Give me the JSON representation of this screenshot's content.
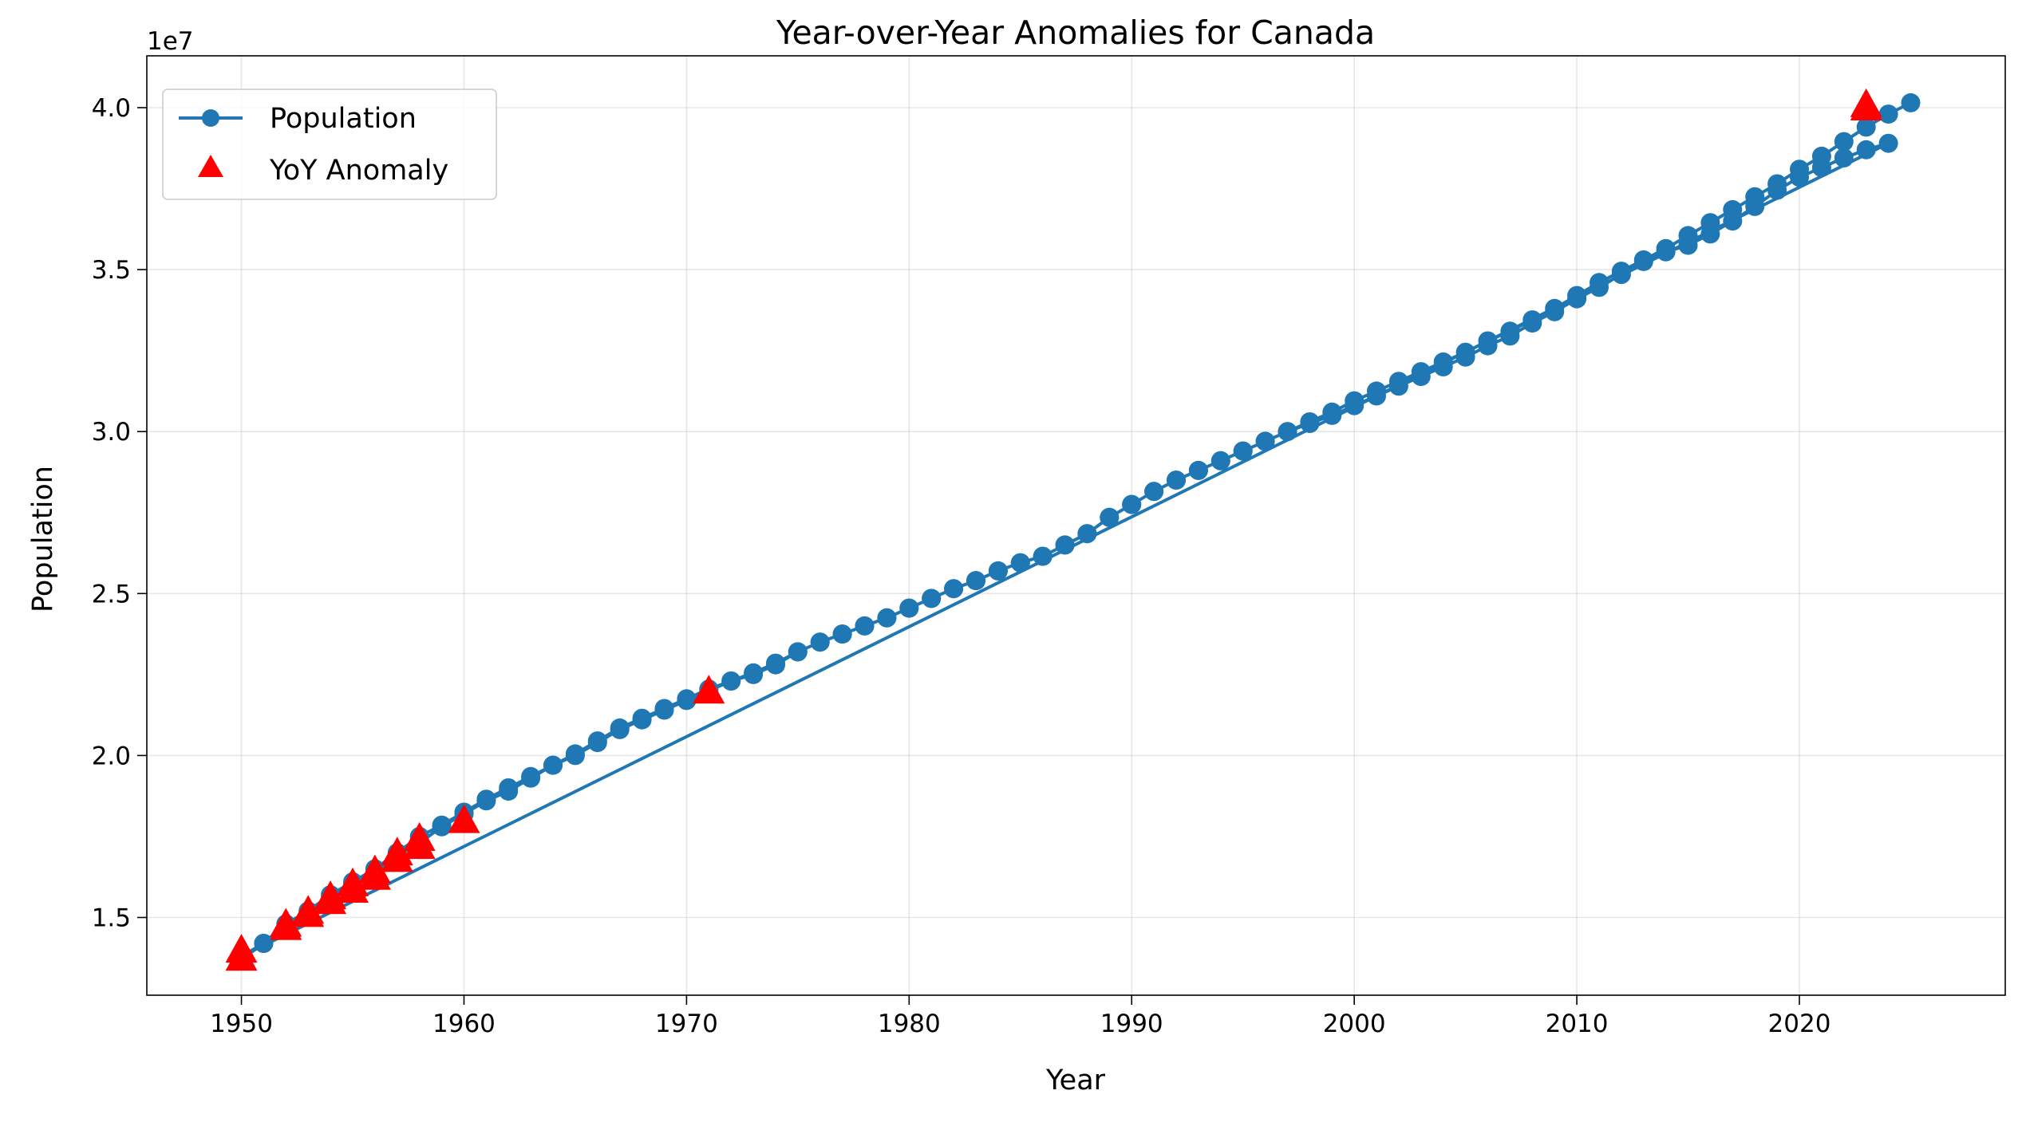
{
  "chart_data": {
    "type": "line",
    "title": "Year-over-Year Anomalies for Canada",
    "xlabel": "Year",
    "ylabel": "Population",
    "y_offset_label": "1e7",
    "y_scale_factor": 10000000,
    "xlim": [
      1945.75,
      2029.25
    ],
    "ylim": [
      12600000,
      41600000
    ],
    "xticks": [
      1950,
      1960,
      1970,
      1980,
      1990,
      2000,
      2010,
      2020
    ],
    "xtick_labels": [
      "1950",
      "1960",
      "1970",
      "1980",
      "1990",
      "2000",
      "2010",
      "2020"
    ],
    "yticks": [
      15000000,
      20000000,
      25000000,
      30000000,
      35000000,
      40000000
    ],
    "ytick_labels": [
      "1.5",
      "2.0",
      "2.5",
      "3.0",
      "3.5",
      "4.0"
    ],
    "grid": true,
    "legend_position": "top-left",
    "legend": [
      "Population",
      "YoY Anomaly"
    ],
    "series": [
      {
        "name": "Population",
        "color": "#1f77b4",
        "marker": "circle",
        "points": [
          [
            1950,
            13700000
          ],
          [
            1951,
            14200000
          ],
          [
            1952,
            14700000
          ],
          [
            1953,
            15100000
          ],
          [
            1954,
            15600000
          ],
          [
            1955,
            16000000
          ],
          [
            1956,
            16400000
          ],
          [
            1957,
            16900000
          ],
          [
            1958,
            17300000
          ],
          [
            1959,
            17800000
          ],
          [
            1960,
            18200000
          ],
          [
            1961,
            18600000
          ],
          [
            1962,
            18900000
          ],
          [
            1963,
            19300000
          ],
          [
            1964,
            19700000
          ],
          [
            1965,
            20000000
          ],
          [
            1966,
            20400000
          ],
          [
            1967,
            20800000
          ],
          [
            1968,
            21100000
          ],
          [
            1969,
            21400000
          ],
          [
            1970,
            21700000
          ],
          [
            1971,
            22000000
          ],
          [
            1972,
            22300000
          ],
          [
            1973,
            22500000
          ],
          [
            1974,
            22800000
          ],
          [
            1975,
            23200000
          ],
          [
            1976,
            23500000
          ],
          [
            1977,
            23750000
          ],
          [
            1978,
            24000000
          ],
          [
            1979,
            24250000
          ],
          [
            1980,
            24550000
          ],
          [
            1981,
            24850000
          ],
          [
            1982,
            25150000
          ],
          [
            1983,
            25400000
          ],
          [
            1984,
            25700000
          ],
          [
            1985,
            25950000
          ],
          [
            1986,
            26150000
          ],
          [
            1987,
            26500000
          ],
          [
            1988,
            26850000
          ],
          [
            1989,
            27350000
          ],
          [
            1990,
            27750000
          ],
          [
            1991,
            28150000
          ],
          [
            1992,
            28500000
          ],
          [
            1993,
            28800000
          ],
          [
            1994,
            29100000
          ],
          [
            1995,
            29400000
          ],
          [
            1996,
            29700000
          ],
          [
            1997,
            30000000
          ],
          [
            1998,
            30250000
          ],
          [
            1999,
            30500000
          ],
          [
            2000,
            30800000
          ],
          [
            2001,
            31100000
          ],
          [
            2002,
            31400000
          ],
          [
            2003,
            31700000
          ],
          [
            2004,
            32000000
          ],
          [
            2005,
            32300000
          ],
          [
            2006,
            32650000
          ],
          [
            2007,
            32950000
          ],
          [
            2008,
            33350000
          ],
          [
            2009,
            33700000
          ],
          [
            2010,
            34100000
          ],
          [
            2011,
            34450000
          ],
          [
            2012,
            34850000
          ],
          [
            2013,
            35250000
          ],
          [
            2014,
            35550000
          ],
          [
            2015,
            35750000
          ],
          [
            2016,
            36100000
          ],
          [
            2017,
            36500000
          ],
          [
            2018,
            36950000
          ],
          [
            2019,
            37450000
          ],
          [
            2020,
            37850000
          ],
          [
            2021,
            38150000
          ],
          [
            2022,
            38450000
          ],
          [
            2023,
            38700000
          ],
          [
            2024,
            38900000
          ],
          [
            1950,
            13800000
          ],
          [
            1951,
            14200000
          ],
          [
            1952,
            14800000
          ],
          [
            1953,
            15200000
          ],
          [
            1954,
            15700000
          ],
          [
            1955,
            16100000
          ],
          [
            1956,
            16500000
          ],
          [
            1957,
            17000000
          ],
          [
            1958,
            17500000
          ],
          [
            1959,
            17850000
          ],
          [
            1960,
            18250000
          ],
          [
            1961,
            18650000
          ],
          [
            1962,
            19000000
          ],
          [
            1963,
            19350000
          ],
          [
            1964,
            19700000
          ],
          [
            1965,
            20050000
          ],
          [
            1966,
            20450000
          ],
          [
            1967,
            20850000
          ],
          [
            1968,
            21150000
          ],
          [
            1969,
            21450000
          ],
          [
            1970,
            21750000
          ],
          [
            1971,
            22050000
          ],
          [
            1972,
            22300000
          ],
          [
            1973,
            22550000
          ],
          [
            1974,
            22850000
          ],
          [
            1975,
            23200000
          ],
          [
            1976,
            23500000
          ],
          [
            1977,
            23750000
          ],
          [
            1978,
            24000000
          ],
          [
            1979,
            24250000
          ],
          [
            1980,
            24550000
          ],
          [
            1981,
            24850000
          ],
          [
            1982,
            25150000
          ],
          [
            1983,
            25400000
          ],
          [
            1984,
            25700000
          ],
          [
            1985,
            25950000
          ],
          [
            1986,
            26150000
          ],
          [
            1987,
            26500000
          ],
          [
            1988,
            26850000
          ],
          [
            1989,
            27350000
          ],
          [
            1990,
            27750000
          ],
          [
            1991,
            28150000
          ],
          [
            1992,
            28500000
          ],
          [
            1993,
            28800000
          ],
          [
            1994,
            29100000
          ],
          [
            1995,
            29400000
          ],
          [
            1996,
            29700000
          ],
          [
            1997,
            30000000
          ],
          [
            1998,
            30300000
          ],
          [
            1999,
            30600000
          ],
          [
            2000,
            30950000
          ],
          [
            2001,
            31250000
          ],
          [
            2002,
            31550000
          ],
          [
            2003,
            31850000
          ],
          [
            2004,
            32150000
          ],
          [
            2005,
            32450000
          ],
          [
            2006,
            32800000
          ],
          [
            2007,
            33100000
          ],
          [
            2008,
            33450000
          ],
          [
            2009,
            33800000
          ],
          [
            2010,
            34200000
          ],
          [
            2011,
            34600000
          ],
          [
            2012,
            34950000
          ],
          [
            2013,
            35300000
          ],
          [
            2014,
            35650000
          ],
          [
            2015,
            36050000
          ],
          [
            2016,
            36450000
          ],
          [
            2017,
            36850000
          ],
          [
            2018,
            37250000
          ],
          [
            2019,
            37650000
          ],
          [
            2020,
            38100000
          ],
          [
            2021,
            38500000
          ],
          [
            2022,
            38950000
          ],
          [
            2023,
            39400000
          ],
          [
            2024,
            39800000
          ],
          [
            2025,
            40150000
          ]
        ]
      },
      {
        "name": "YoY Anomaly",
        "color": "#ff0000",
        "marker": "triangle",
        "points": [
          [
            1950,
            13750000
          ],
          [
            1950,
            14000000
          ],
          [
            1952,
            14700000
          ],
          [
            1952,
            14800000
          ],
          [
            1953,
            15100000
          ],
          [
            1953,
            15200000
          ],
          [
            1954,
            15500000
          ],
          [
            1954,
            15650000
          ],
          [
            1955,
            15850000
          ],
          [
            1955,
            16050000
          ],
          [
            1956,
            16250000
          ],
          [
            1956,
            16450000
          ],
          [
            1957,
            16800000
          ],
          [
            1957,
            17000000
          ],
          [
            1958,
            17200000
          ],
          [
            1958,
            17450000
          ],
          [
            1960,
            18000000
          ],
          [
            1971,
            22000000
          ],
          [
            2023,
            40000000
          ],
          [
            2023,
            40100000
          ]
        ]
      }
    ]
  }
}
